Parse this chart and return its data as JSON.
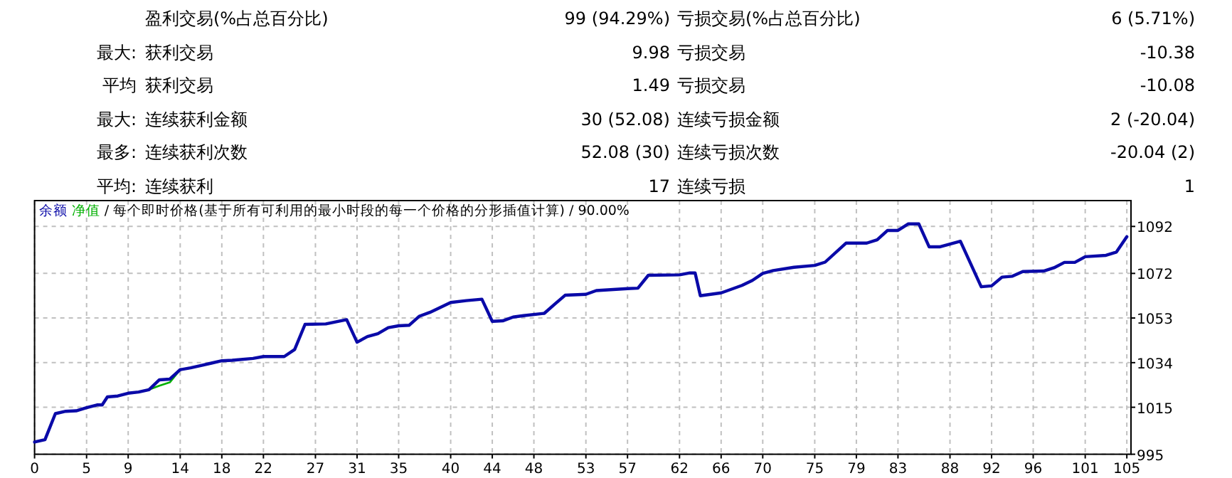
{
  "chart_data": [
    {
      "type": "other",
      "annotations": [
        "盈利交易(%占总百分比)",
        "99 (94.29%)",
        "亏损交易(%占总百分比)",
        "6 (5.71%)",
        "最大:",
        "获利交易",
        "9.98",
        "亏损交易",
        "-10.38",
        "平均",
        "获利交易",
        "1.49",
        "亏损交易",
        "-10.08",
        "最大:",
        "连续获利金额",
        "30 (52.08)",
        "连续亏损金额",
        "2 (-20.04)",
        "最多:",
        "连续获利次数",
        "52.08 (30)",
        "连续亏损次数",
        "-20.04 (2)",
        "平均:",
        "连续获利",
        "17",
        "连续亏损",
        "1"
      ]
    },
    {
      "type": "line",
      "title": "/ 每个即时价格(基于所有可利用的最小时段的每一个价格的分形插值计算) / 90.00%",
      "legend": "top left",
      "grid": true,
      "xlim": [
        0,
        105.4
      ],
      "ylim": [
        995,
        1103
      ],
      "xticks": [
        0,
        5,
        9,
        14,
        18,
        22,
        27,
        31,
        35,
        40,
        44,
        48,
        53,
        57,
        62,
        66,
        70,
        75,
        79,
        83,
        88,
        92,
        96,
        101,
        105
      ],
      "yticks": [
        995,
        1015,
        1034,
        1053,
        1072,
        1092
      ],
      "series": [
        {
          "name": "余额",
          "color": "#0a0aa8",
          "x": [
            0,
            1,
            2,
            3,
            4,
            5,
            6,
            6.5,
            7,
            8,
            9,
            10,
            11,
            12,
            13,
            14,
            15,
            16,
            17,
            18,
            19,
            21,
            22,
            24,
            25,
            26,
            28,
            30,
            31,
            32,
            33,
            34,
            35,
            36,
            37,
            38,
            40,
            41.5,
            43,
            44,
            45,
            46,
            47,
            49,
            50,
            51,
            53,
            54,
            57,
            58,
            59,
            62,
            63,
            63.5,
            64,
            66,
            68,
            69,
            70,
            71,
            73,
            75,
            76,
            78,
            80,
            81,
            82,
            83,
            84,
            85,
            86,
            87,
            89,
            91,
            92,
            93,
            94,
            95,
            97,
            98,
            99,
            100,
            101,
            103,
            104,
            105
          ],
          "values": [
            1000.2,
            1001.2,
            1012.3,
            1013.3,
            1013.5,
            1014.8,
            1016,
            1016,
            1019.4,
            1019.8,
            1021,
            1021.5,
            1022.5,
            1026.7,
            1027,
            1031,
            1031.8,
            1032.8,
            1033.8,
            1034.8,
            1035,
            1035.8,
            1036.6,
            1036.6,
            1039.6,
            1050.3,
            1050.5,
            1052.3,
            1042.7,
            1045.1,
            1046.3,
            1048.9,
            1049.7,
            1049.9,
            1053.8,
            1055.4,
            1059.6,
            1060.4,
            1061,
            1051.6,
            1051.8,
            1053.4,
            1054,
            1055,
            1058.9,
            1062.7,
            1063.1,
            1064.7,
            1065.5,
            1065.7,
            1071.2,
            1071.4,
            1072.2,
            1072.2,
            1062.5,
            1063.7,
            1066.9,
            1069,
            1072,
            1073.2,
            1074.6,
            1075.4,
            1076.8,
            1084.9,
            1084.9,
            1086.3,
            1090.3,
            1090.3,
            1093.1,
            1093.1,
            1083.3,
            1083.3,
            1085.7,
            1066.3,
            1066.7,
            1070.4,
            1070.8,
            1072.8,
            1073,
            1074.4,
            1076.7,
            1076.7,
            1079.1,
            1079.7,
            1081.1,
            1087.6
          ]
        },
        {
          "name": "净值",
          "color": "#00b000",
          "x": [
            11,
            12,
            13,
            14
          ],
          "values": [
            1022.5,
            1024.2,
            1025.6,
            1031
          ]
        }
      ]
    }
  ]
}
